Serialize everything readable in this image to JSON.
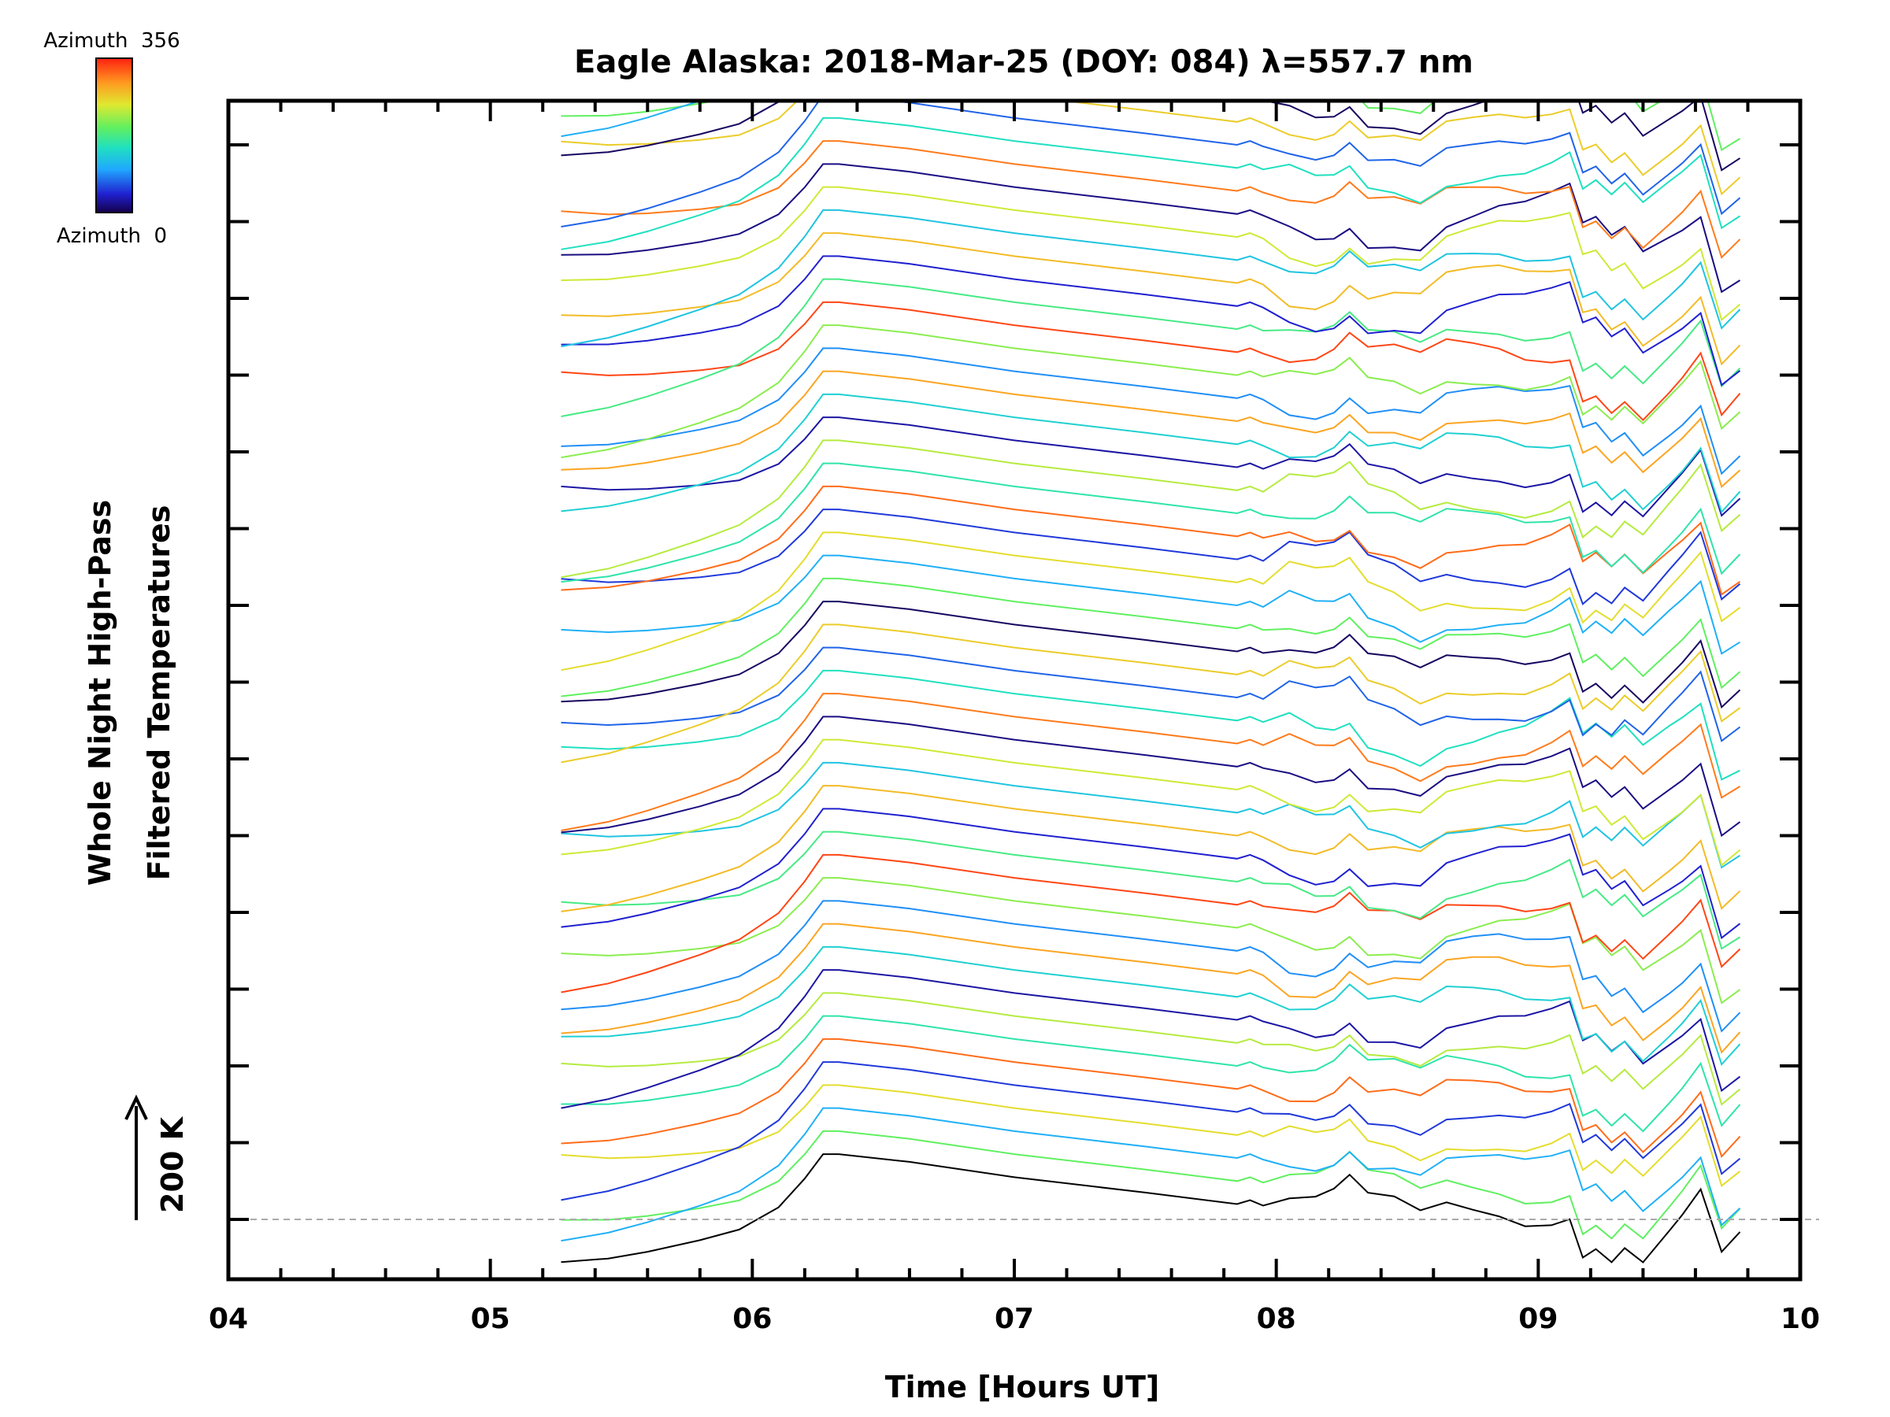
{
  "chart_data": {
    "type": "line",
    "title": "Eagle Alaska: 2018-Mar-25 (DOY: 084) λ=557.7 nm",
    "xlabel": "Time [Hours UT]",
    "ylabel_line1": "Whole Night High-Pass",
    "ylabel_line2": "Filtered Temperatures",
    "scale_label": "200 K",
    "xlim": [
      4,
      10
    ],
    "x_ticks": [
      "04",
      "05",
      "06",
      "07",
      "08",
      "09",
      "10"
    ],
    "y_tick_count": 15,
    "y_ticks_labeled": false,
    "grid": false,
    "colorbar": {
      "top_label": "Azimuth  356",
      "bottom_label": "Azimuth  0",
      "colormap": "rainbow (dark blue → red)",
      "range": [
        0,
        356
      ]
    },
    "baseline_style": "dashed gray",
    "series_count": 96,
    "series_offset_ticks": 0.3,
    "data_start_hour": 5.27,
    "data_end_hour": 9.77,
    "bottom_series_x": [
      5.27,
      5.45,
      5.6,
      5.8,
      5.95,
      6.1,
      6.2,
      6.27,
      6.33,
      6.6,
      7.0,
      7.5,
      7.85,
      7.9,
      7.95,
      8.05,
      8.15,
      8.22,
      8.28,
      8.35,
      8.45,
      8.55,
      8.65,
      8.75,
      8.85,
      8.95,
      9.05,
      9.12,
      9.17,
      9.22,
      9.28,
      9.33,
      9.4,
      9.5,
      9.55,
      9.62,
      9.7,
      9.77
    ],
    "bottom_series_y": [
      -0.3,
      -0.3,
      -0.25,
      -0.15,
      -0.05,
      0.2,
      0.55,
      0.85,
      0.85,
      0.75,
      0.55,
      0.35,
      0.2,
      0.25,
      0.18,
      0.18,
      0.1,
      0.15,
      0.3,
      0.05,
      0.02,
      -0.1,
      0.1,
      0.12,
      0.15,
      0.12,
      0.2,
      0.3,
      -0.2,
      -0.1,
      -0.3,
      -0.15,
      -0.4,
      -0.1,
      0.05,
      0.3,
      -0.6,
      -0.4
    ]
  }
}
